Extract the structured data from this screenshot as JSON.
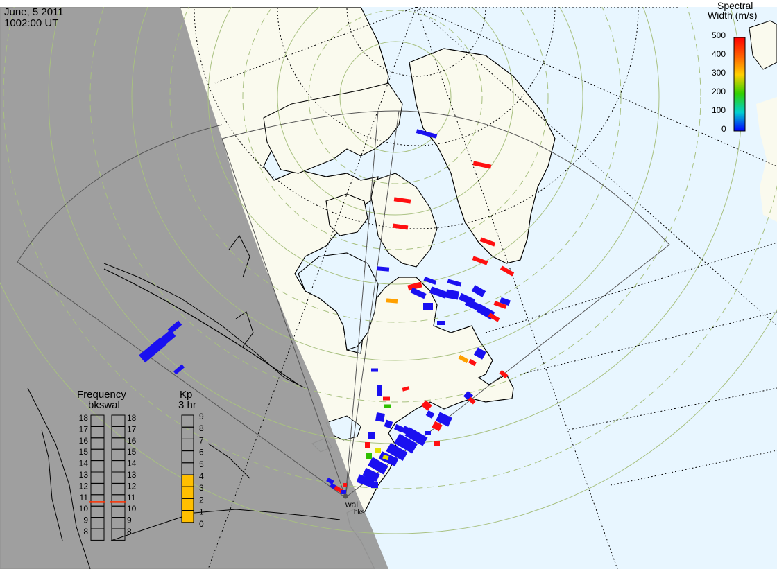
{
  "header": {
    "date": "June, 5 2011",
    "time": "1002:00 UT"
  },
  "colorbar": {
    "title_line1": "Spectral",
    "title_line2": "Width (m/s)",
    "ticks": [
      "500",
      "400",
      "300",
      "200",
      "100",
      "0"
    ],
    "colors": [
      "#ff0000",
      "#ff8000",
      "#ffcc00",
      "#00cc00",
      "#00cccc",
      "#0000ff"
    ]
  },
  "frequency_panel": {
    "title": "Frequency",
    "subtitle": "bkswal",
    "left_labels": [
      "18",
      "17",
      "16",
      "15",
      "14",
      "13",
      "12",
      "11",
      "10",
      "9",
      "8"
    ],
    "right_labels": [
      "18",
      "17",
      "16",
      "15",
      "14",
      "13",
      "12",
      "11",
      "10",
      "9",
      "8"
    ],
    "bks_frequency_mhz": 10.6,
    "wal_frequency_mhz": 10.6
  },
  "kp_panel": {
    "title": "Kp",
    "subtitle": "3 hr",
    "labels": [
      "9",
      "8",
      "7",
      "6",
      "5",
      "4",
      "3",
      "2",
      "1",
      "0"
    ],
    "kp_value": 4,
    "fill_color": "#ffbf00"
  },
  "stations": {
    "wal": "wal",
    "bks": "bks"
  },
  "map_colors": {
    "night_side": "#9a9a9a",
    "land": "#fafaee",
    "ocean": "#e8f6ff",
    "grid": "#a8c080"
  }
}
